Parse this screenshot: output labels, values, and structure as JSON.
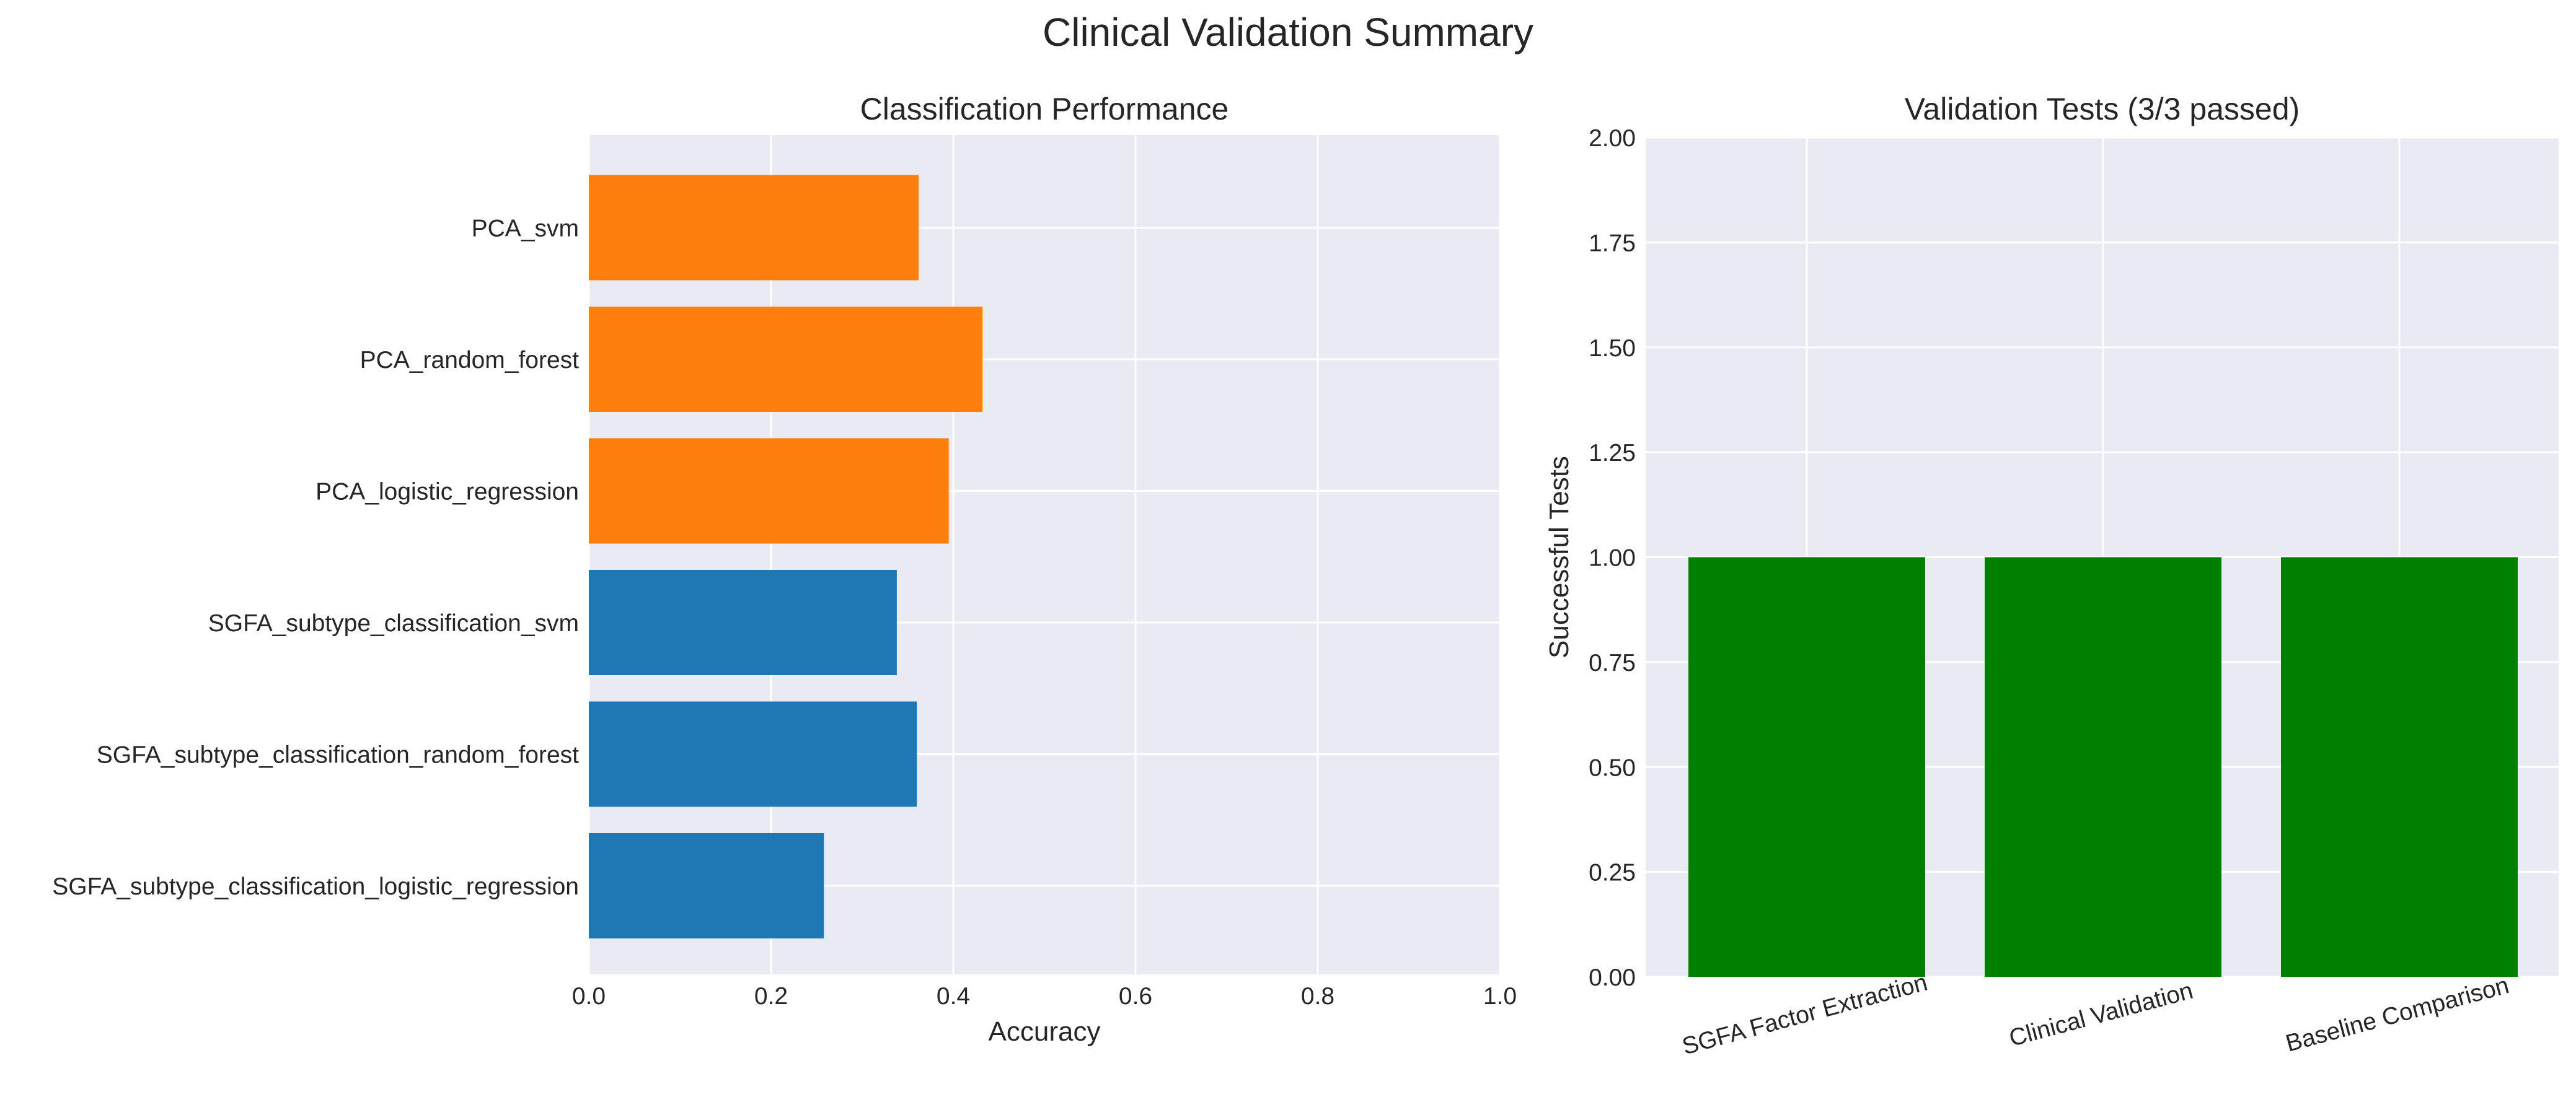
{
  "figure": {
    "title": "Clinical Validation Summary"
  },
  "chart_data": [
    {
      "type": "bar",
      "orientation": "horizontal",
      "title": "Classification Performance",
      "xlabel": "Accuracy",
      "ylabel": "",
      "xlim": [
        0,
        1.0
      ],
      "xticks": [
        "0.0",
        "0.2",
        "0.4",
        "0.6",
        "0.8",
        "1.0"
      ],
      "grid": true,
      "categories": [
        "SGFA_subtype_classification_logistic_regression",
        "SGFA_subtype_classification_random_forest",
        "SGFA_subtype_classification_svm",
        "PCA_logistic_regression",
        "PCA_random_forest",
        "PCA_svm"
      ],
      "values": [
        0.258,
        0.36,
        0.338,
        0.395,
        0.432,
        0.362
      ],
      "colors": [
        "#1f77b4",
        "#1f77b4",
        "#1f77b4",
        "#ff7f0e",
        "#ff7f0e",
        "#ff7f0e"
      ]
    },
    {
      "type": "bar",
      "orientation": "vertical",
      "title": "Validation Tests (3/3 passed)",
      "xlabel": "",
      "ylabel": "Successful Tests",
      "ylim": [
        0,
        2.0
      ],
      "yticks": [
        "0.00",
        "0.25",
        "0.50",
        "0.75",
        "1.00",
        "1.25",
        "1.50",
        "1.75",
        "2.00"
      ],
      "grid": true,
      "categories": [
        "SGFA Factor Extraction",
        "Clinical Validation",
        "Baseline Comparison"
      ],
      "values": [
        1,
        1,
        1
      ],
      "colors": [
        "#008000",
        "#008000",
        "#008000"
      ]
    }
  ]
}
